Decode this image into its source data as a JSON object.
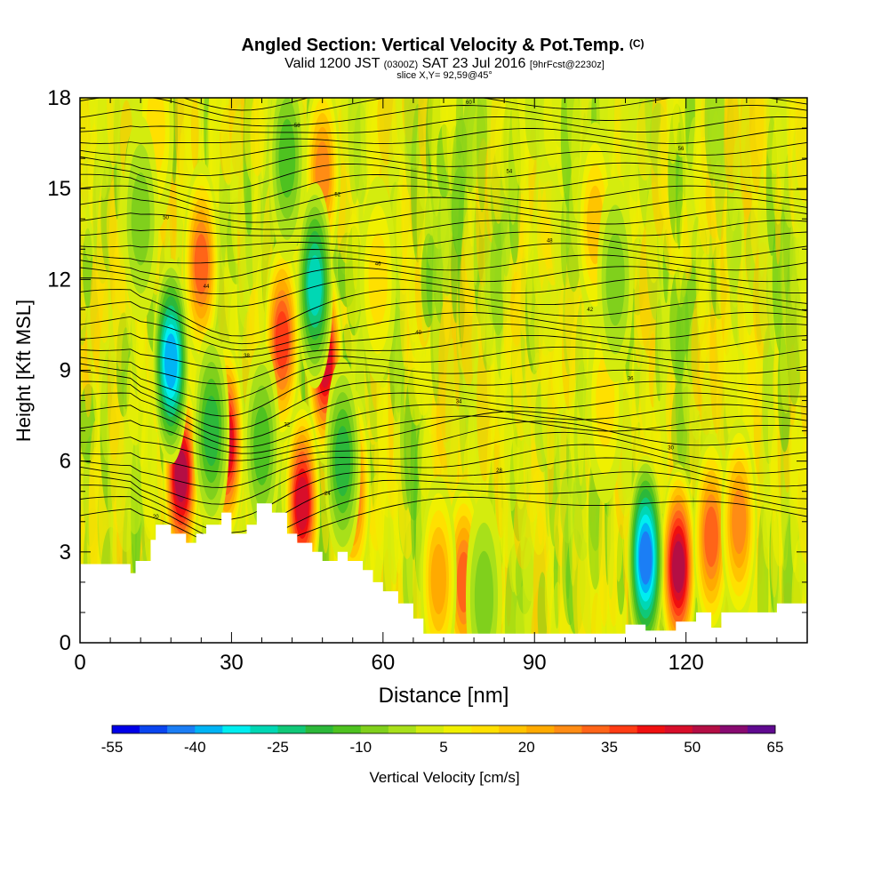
{
  "chart_data": {
    "type": "heatmap",
    "title": "Angled Section: Vertical Velocity & Pot.Temp.",
    "title_unit": "(C)",
    "subtitle_parts": {
      "valid": "Valid 1200 JST",
      "zulu": "(0300Z)",
      "date": "SAT 23 Jul 2016",
      "forecast": "[9hrFcst@2230z]"
    },
    "slice_label": "slice X,Y= 92,59@45°",
    "xlabel": "Distance [nm]",
    "ylabel": "Height [Kft MSL]",
    "xlim": [
      0,
      144
    ],
    "ylim": [
      0,
      18
    ],
    "x_ticks": [
      "0",
      "30",
      "60",
      "90",
      "120"
    ],
    "x_tick_values": [
      0,
      30,
      60,
      90,
      120
    ],
    "y_ticks": [
      "0",
      "3",
      "6",
      "9",
      "12",
      "15",
      "18"
    ],
    "y_tick_values": [
      0,
      3,
      6,
      9,
      12,
      15,
      18
    ],
    "terrain": {
      "distance_nm": [
        0,
        10,
        10,
        11,
        11,
        14,
        14,
        15,
        15,
        18,
        18,
        21,
        21,
        23,
        23,
        25,
        25,
        28,
        28,
        30,
        30,
        33,
        33,
        35,
        35,
        38,
        38,
        41,
        41,
        43,
        43,
        46,
        46,
        48,
        48,
        51,
        51,
        53,
        53,
        56,
        56,
        58,
        58,
        60,
        60,
        63,
        63,
        66,
        66,
        68,
        68,
        108,
        108,
        112,
        112,
        118,
        118,
        122,
        122,
        125,
        125,
        127,
        127,
        132,
        132,
        138,
        138,
        144
      ],
      "height_kft": [
        2.6,
        2.6,
        2.3,
        2.3,
        2.7,
        2.7,
        3.4,
        3.4,
        3.9,
        3.9,
        3.6,
        3.6,
        3.3,
        3.3,
        3.6,
        3.6,
        3.9,
        3.9,
        4.3,
        4.3,
        3.6,
        3.6,
        3.9,
        3.9,
        4.6,
        4.6,
        4.3,
        4.3,
        3.6,
        3.6,
        3.3,
        3.3,
        3.0,
        3.0,
        2.7,
        2.7,
        3.0,
        3.0,
        2.7,
        2.7,
        2.4,
        2.4,
        2.0,
        2.0,
        1.7,
        1.7,
        1.3,
        1.3,
        0.8,
        0.8,
        0.3,
        0.3,
        0.6,
        0.6,
        0.4,
        0.4,
        0.7,
        0.7,
        1.0,
        1.0,
        0.5,
        0.5,
        1.0,
        1.0,
        1.0,
        1.0,
        1.3,
        1.3
      ]
    },
    "updrafts": [
      {
        "x": 20,
        "y": 5.5,
        "value": 52
      },
      {
        "x": 29,
        "y": 6.6,
        "value": 45
      },
      {
        "x": 24,
        "y": 12.5,
        "value": 30
      },
      {
        "x": 48.5,
        "y": 9.3,
        "value": 45
      },
      {
        "x": 48,
        "y": 15.5,
        "value": 28
      },
      {
        "x": 40,
        "y": 10.0,
        "value": 35
      },
      {
        "x": 44,
        "y": 4.6,
        "value": 45
      },
      {
        "x": 54,
        "y": 5.0,
        "value": 30
      },
      {
        "x": 76,
        "y": 2.0,
        "value": 30
      },
      {
        "x": 71,
        "y": 2.1,
        "value": 22
      },
      {
        "x": 118.5,
        "y": 2.5,
        "value": 50
      },
      {
        "x": 125,
        "y": 3.5,
        "value": 32
      },
      {
        "x": 130.5,
        "y": 4.0,
        "value": 28
      },
      {
        "x": 102,
        "y": 13.8,
        "value": 18
      },
      {
        "x": 104,
        "y": 8.0,
        "value": 12
      },
      {
        "x": 59,
        "y": 12.0,
        "value": 10
      },
      {
        "x": 15,
        "y": 17.0,
        "value": 12
      }
    ],
    "downdrafts": [
      {
        "x": 112,
        "y": 2.8,
        "value": -45
      },
      {
        "x": 18,
        "y": 9.3,
        "value": -40
      },
      {
        "x": 46.5,
        "y": 11.8,
        "value": -30
      },
      {
        "x": 26,
        "y": 7.0,
        "value": -20
      },
      {
        "x": 41,
        "y": 16.0,
        "value": -18
      },
      {
        "x": 52,
        "y": 6.0,
        "value": -20
      },
      {
        "x": 36,
        "y": 6.5,
        "value": -15
      },
      {
        "x": 80,
        "y": 1.5,
        "value": -12
      },
      {
        "x": 106,
        "y": 12.0,
        "value": -12
      },
      {
        "x": 12,
        "y": 14.0,
        "value": -10
      }
    ],
    "colorbar": {
      "label": "Vertical Velocity [cm/s]",
      "tick_labels": [
        "-55",
        "-40",
        "-25",
        "-10",
        "5",
        "20",
        "35",
        "50",
        "65"
      ],
      "tick_values": [
        -55,
        -40,
        -25,
        -10,
        5,
        20,
        35,
        50,
        65
      ],
      "step": 5,
      "colors": [
        "#0000e8",
        "#0a45f0",
        "#1b7ef5",
        "#00b4f5",
        "#00eef0",
        "#00d7b4",
        "#10c878",
        "#2cb83a",
        "#4ec220",
        "#80d01c",
        "#a8e01a",
        "#d4ec0e",
        "#f0f000",
        "#ffe000",
        "#ffc400",
        "#ffaa00",
        "#ff8c14",
        "#ff6418",
        "#ff3c14",
        "#f01010",
        "#d80e2a",
        "#b40e44",
        "#880a70",
        "#600a90"
      ]
    },
    "theta_contour_labels": [
      "20",
      "24",
      "28",
      "30",
      "32",
      "34",
      "36",
      "38",
      "40",
      "42",
      "44",
      "46",
      "48",
      "50",
      "52",
      "54",
      "56",
      "58",
      "60",
      "62",
      "64",
      "66",
      "68",
      "70"
    ]
  }
}
